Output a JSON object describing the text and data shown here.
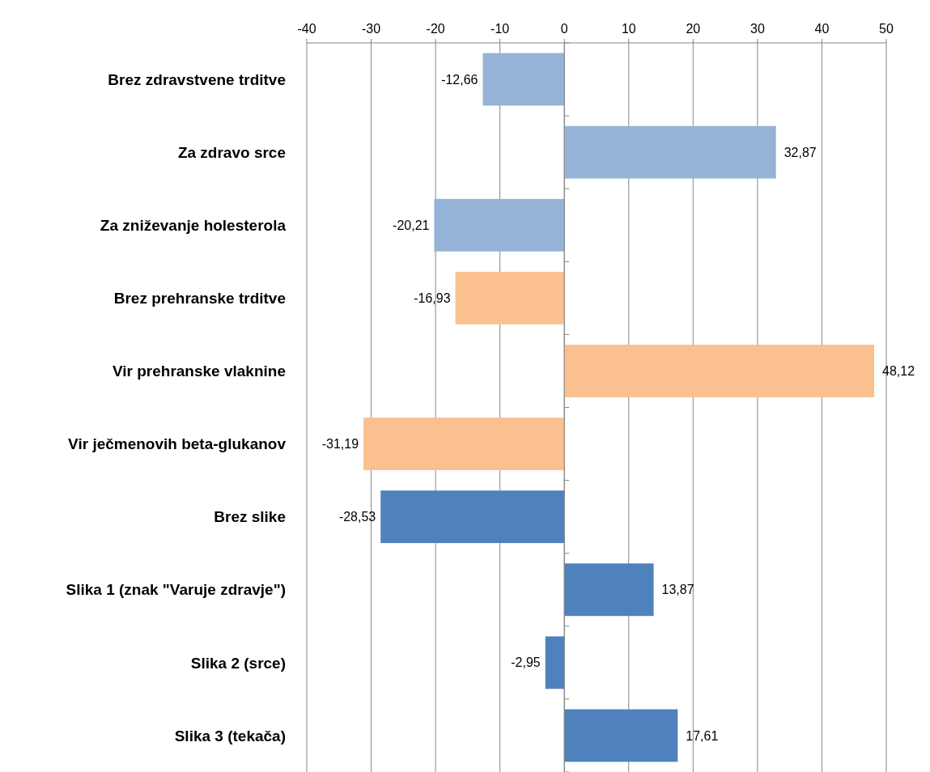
{
  "chart_data": {
    "type": "bar",
    "orientation": "horizontal",
    "categories": [
      "Brez zdravstvene trditve",
      "Za zdravo srce",
      "Za zniževanje holesterola",
      "Brez prehranske trditve",
      "Vir prehranske vlaknine",
      "Vir ječmenovih beta-glukanov",
      "Brez slike",
      "Slika 1 (znak \"Varuje zdravje\")",
      "Slika 2 (srce)",
      "Slika 3 (tekača)"
    ],
    "values": [
      -12.66,
      32.87,
      -20.21,
      -16.93,
      48.12,
      -31.19,
      -28.53,
      13.87,
      -2.95,
      17.61
    ],
    "value_labels": [
      "-12,66",
      "32,87",
      "-20,21",
      "-16,93",
      "48,12",
      "-31,19",
      "-28,53",
      "13,87",
      "-2,95",
      "17,61"
    ],
    "colors": [
      "#95b3d7",
      "#95b3d7",
      "#95b3d7",
      "#fac090",
      "#fac090",
      "#fac090",
      "#4f81bd",
      "#4f81bd",
      "#4f81bd",
      "#4f81bd"
    ],
    "xlim": [
      -40,
      50
    ],
    "xticks": [
      -40,
      -30,
      -20,
      -10,
      0,
      10,
      20,
      30,
      40,
      50
    ],
    "grid": "x"
  }
}
